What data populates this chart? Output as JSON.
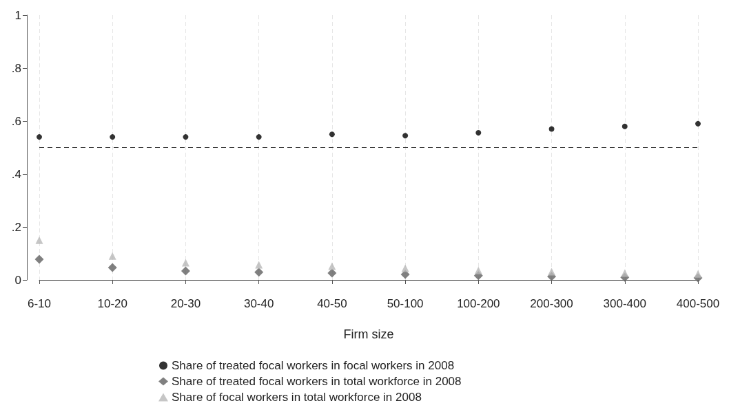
{
  "chart_data": {
    "type": "scatter",
    "xlabel": "Firm size",
    "categories": [
      "6-10",
      "10-20",
      "20-30",
      "30-40",
      "40-50",
      "50-100",
      "100-200",
      "200-300",
      "300-400",
      "400-500"
    ],
    "series": [
      {
        "name": "Share of treated focal workers in focal workers in 2008",
        "color": "#000000",
        "marker": "circle",
        "values": [
          0.54,
          0.54,
          0.54,
          0.54,
          0.55,
          0.545,
          0.556,
          0.57,
          0.58,
          0.59
        ]
      },
      {
        "name": "Share of treated focal workers in total workforce in 2008",
        "color": "#606060",
        "marker": "diamond",
        "values": [
          0.078,
          0.047,
          0.034,
          0.029,
          0.026,
          0.021,
          0.016,
          0.013,
          0.01,
          0.008
        ]
      },
      {
        "name": "Share of focal workers in total workforce in 2008",
        "color": "#b8b8b8",
        "marker": "triangle",
        "values": [
          0.15,
          0.09,
          0.065,
          0.057,
          0.052,
          0.044,
          0.036,
          0.031,
          0.026,
          0.023
        ]
      }
    ],
    "ylim": [
      0,
      1
    ],
    "yticks": [
      {
        "value": 0,
        "label": "0"
      },
      {
        "value": 0.2,
        "label": ".2"
      },
      {
        "value": 0.4,
        "label": ".4"
      },
      {
        "value": 0.6,
        "label": ".6"
      },
      {
        "value": 0.8,
        "label": ".8"
      },
      {
        "value": 1,
        "label": "1"
      }
    ],
    "ref_lines": [
      {
        "axis": "y",
        "value": 0.5,
        "color": "#333333",
        "line_style": "dashed"
      }
    ],
    "grid": "x",
    "legend": "bottom"
  }
}
